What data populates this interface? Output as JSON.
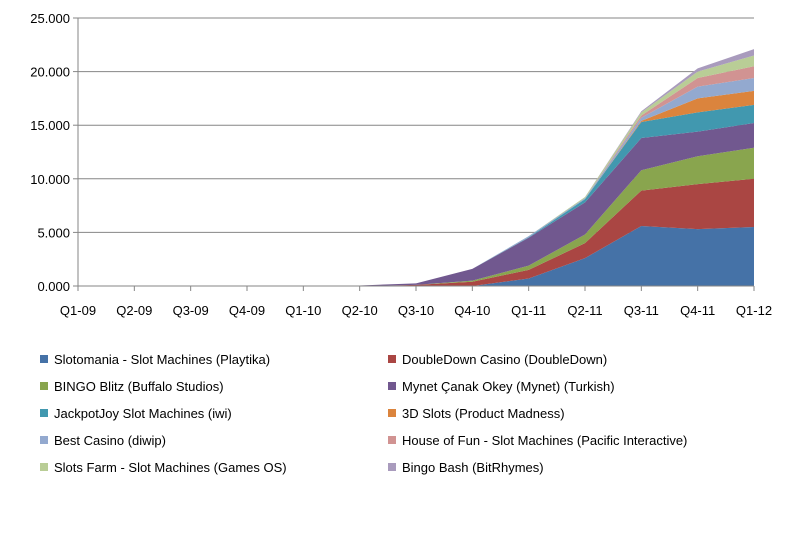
{
  "chart_data": {
    "type": "area",
    "stacked": true,
    "categories": [
      "Q1-09",
      "Q2-09",
      "Q3-09",
      "Q4-09",
      "Q1-10",
      "Q2-10",
      "Q3-10",
      "Q4-10",
      "Q1-11",
      "Q2-11",
      "Q3-11",
      "Q4-11",
      "Q1-12"
    ],
    "ylim": [
      0,
      25000
    ],
    "yticks": [
      0,
      5000,
      10000,
      15000,
      20000,
      25000
    ],
    "ytick_labels": [
      "0.000",
      "5.000",
      "10.000",
      "15.000",
      "20.000",
      "25.000"
    ],
    "grid": "horizontal",
    "legend_position": "bottom",
    "series": [
      {
        "name": "Slotomania - Slot Machines (Playtika)",
        "color": "#4572A7",
        "values": [
          0,
          0,
          0,
          0,
          0,
          0,
          0,
          0,
          700,
          2600,
          5600,
          5300,
          5500
        ]
      },
      {
        "name": "DoubleDown Casino (DoubleDown)",
        "color": "#AA4643",
        "values": [
          0,
          0,
          0,
          0,
          0,
          0,
          100,
          400,
          800,
          1400,
          3300,
          4200,
          4500
        ]
      },
      {
        "name": "BINGO Blitz (Buffalo Studios)",
        "color": "#89A54E",
        "values": [
          0,
          0,
          0,
          0,
          0,
          0,
          0,
          100,
          400,
          800,
          1900,
          2600,
          2900
        ]
      },
      {
        "name": "Mynet Çanak Okey (Mynet) (Turkish)",
        "color": "#71588F",
        "values": [
          0,
          0,
          0,
          0,
          0,
          50,
          150,
          1100,
          2600,
          3000,
          3000,
          2300,
          2300
        ]
      },
      {
        "name": "JackpotJoy Slot Machines (iwi)",
        "color": "#4198AF",
        "values": [
          0,
          0,
          0,
          0,
          0,
          0,
          0,
          0,
          50,
          300,
          1500,
          1800,
          1700
        ]
      },
      {
        "name": "3D Slots (Product Madness)",
        "color": "#DB843D",
        "values": [
          0,
          0,
          0,
          0,
          0,
          0,
          0,
          0,
          0,
          0,
          100,
          1300,
          1300
        ]
      },
      {
        "name": "Best Casino (diwip)",
        "color": "#93A9CF",
        "values": [
          0,
          0,
          0,
          0,
          0,
          0,
          0,
          0,
          100,
          100,
          300,
          1100,
          1200
        ]
      },
      {
        "name": "House of Fun - Slot Machines (Pacific Interactive)",
        "color": "#D19392",
        "values": [
          0,
          0,
          0,
          0,
          0,
          0,
          0,
          0,
          0,
          0,
          200,
          800,
          1100
        ]
      },
      {
        "name": "Slots Farm - Slot Machines (Games OS)",
        "color": "#B9CD96",
        "values": [
          0,
          0,
          0,
          0,
          0,
          0,
          0,
          0,
          0,
          100,
          300,
          600,
          1000
        ]
      },
      {
        "name": "Bingo Bash (BitRhymes)",
        "color": "#A99BBD",
        "values": [
          0,
          0,
          0,
          0,
          0,
          0,
          0,
          0,
          0,
          0,
          100,
          300,
          600
        ]
      }
    ]
  }
}
